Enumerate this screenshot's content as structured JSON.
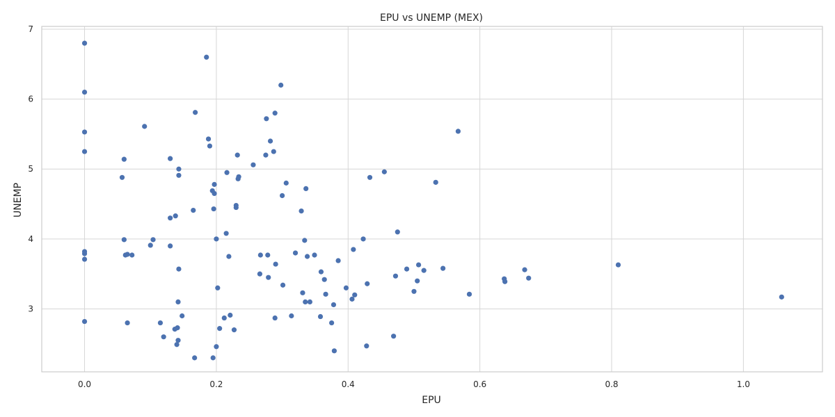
{
  "chart_data": {
    "type": "scatter",
    "title": "EPU vs UNEMP (MEX)",
    "xlabel": "EPU",
    "ylabel": "UNEMP",
    "xlim": [
      -0.065,
      1.12
    ],
    "ylim": [
      2.1,
      7.04
    ],
    "xticks": [
      0.0,
      0.2,
      0.4,
      0.6,
      0.8,
      1.0
    ],
    "xtick_labels": [
      "0.0",
      "0.2",
      "0.4",
      "0.6",
      "0.8",
      "1.0"
    ],
    "yticks": [
      3,
      4,
      5,
      6,
      7
    ],
    "ytick_labels": [
      "3",
      "4",
      "5",
      "6",
      "7"
    ],
    "grid": true,
    "point_color": "#4c72b0",
    "points": [
      [
        0.0,
        6.8
      ],
      [
        0.0,
        6.1
      ],
      [
        0.0,
        5.53
      ],
      [
        0.0,
        5.25
      ],
      [
        0.0,
        3.82
      ],
      [
        0.0,
        3.79
      ],
      [
        0.0,
        3.71
      ],
      [
        0.0,
        2.82
      ],
      [
        0.057,
        4.88
      ],
      [
        0.06,
        5.14
      ],
      [
        0.06,
        3.99
      ],
      [
        0.062,
        3.77
      ],
      [
        0.065,
        3.78
      ],
      [
        0.065,
        2.8
      ],
      [
        0.072,
        3.77
      ],
      [
        0.091,
        5.61
      ],
      [
        0.1,
        3.91
      ],
      [
        0.104,
        3.99
      ],
      [
        0.115,
        2.8
      ],
      [
        0.12,
        2.6
      ],
      [
        0.13,
        5.15
      ],
      [
        0.13,
        4.3
      ],
      [
        0.13,
        3.9
      ],
      [
        0.137,
        2.71
      ],
      [
        0.138,
        4.33
      ],
      [
        0.14,
        2.49
      ],
      [
        0.141,
        2.73
      ],
      [
        0.142,
        3.1
      ],
      [
        0.142,
        2.55
      ],
      [
        0.143,
        5.0
      ],
      [
        0.143,
        4.91
      ],
      [
        0.143,
        3.57
      ],
      [
        0.148,
        2.9
      ],
      [
        0.165,
        4.41
      ],
      [
        0.167,
        2.3
      ],
      [
        0.168,
        5.81
      ],
      [
        0.185,
        6.6
      ],
      [
        0.188,
        5.43
      ],
      [
        0.19,
        5.33
      ],
      [
        0.194,
        4.69
      ],
      [
        0.195,
        2.3
      ],
      [
        0.196,
        4.43
      ],
      [
        0.197,
        4.65
      ],
      [
        0.197,
        4.78
      ],
      [
        0.2,
        4.0
      ],
      [
        0.2,
        2.46
      ],
      [
        0.202,
        3.3
      ],
      [
        0.205,
        2.72
      ],
      [
        0.212,
        2.87
      ],
      [
        0.215,
        4.08
      ],
      [
        0.216,
        4.95
      ],
      [
        0.219,
        3.75
      ],
      [
        0.221,
        2.91
      ],
      [
        0.227,
        2.7
      ],
      [
        0.23,
        4.48
      ],
      [
        0.23,
        4.45
      ],
      [
        0.232,
        5.2
      ],
      [
        0.233,
        4.86
      ],
      [
        0.234,
        4.89
      ],
      [
        0.256,
        5.06
      ],
      [
        0.266,
        3.5
      ],
      [
        0.267,
        3.77
      ],
      [
        0.275,
        5.2
      ],
      [
        0.276,
        5.72
      ],
      [
        0.278,
        3.77
      ],
      [
        0.279,
        3.45
      ],
      [
        0.282,
        5.4
      ],
      [
        0.287,
        5.25
      ],
      [
        0.289,
        5.8
      ],
      [
        0.289,
        2.87
      ],
      [
        0.29,
        3.64
      ],
      [
        0.298,
        6.2
      ],
      [
        0.3,
        4.62
      ],
      [
        0.301,
        3.34
      ],
      [
        0.306,
        4.8
      ],
      [
        0.314,
        2.9
      ],
      [
        0.32,
        3.8
      ],
      [
        0.329,
        4.4
      ],
      [
        0.331,
        3.23
      ],
      [
        0.334,
        3.98
      ],
      [
        0.335,
        3.1
      ],
      [
        0.336,
        4.72
      ],
      [
        0.338,
        3.75
      ],
      [
        0.342,
        3.1
      ],
      [
        0.349,
        3.77
      ],
      [
        0.358,
        2.89
      ],
      [
        0.359,
        3.53
      ],
      [
        0.364,
        3.42
      ],
      [
        0.366,
        3.21
      ],
      [
        0.375,
        2.8
      ],
      [
        0.378,
        3.06
      ],
      [
        0.379,
        2.4
      ],
      [
        0.385,
        3.69
      ],
      [
        0.397,
        3.3
      ],
      [
        0.406,
        3.14
      ],
      [
        0.408,
        3.85
      ],
      [
        0.41,
        3.2
      ],
      [
        0.423,
        4.0
      ],
      [
        0.428,
        2.47
      ],
      [
        0.429,
        3.36
      ],
      [
        0.433,
        4.88
      ],
      [
        0.455,
        4.96
      ],
      [
        0.469,
        2.61
      ],
      [
        0.472,
        3.47
      ],
      [
        0.475,
        4.1
      ],
      [
        0.489,
        3.57
      ],
      [
        0.5,
        3.25
      ],
      [
        0.505,
        3.4
      ],
      [
        0.507,
        3.63
      ],
      [
        0.515,
        3.55
      ],
      [
        0.533,
        4.81
      ],
      [
        0.544,
        3.58
      ],
      [
        0.567,
        5.54
      ],
      [
        0.584,
        3.21
      ],
      [
        0.637,
        3.43
      ],
      [
        0.638,
        3.39
      ],
      [
        0.668,
        3.56
      ],
      [
        0.674,
        3.44
      ],
      [
        0.81,
        3.63
      ],
      [
        1.058,
        3.17
      ]
    ]
  }
}
